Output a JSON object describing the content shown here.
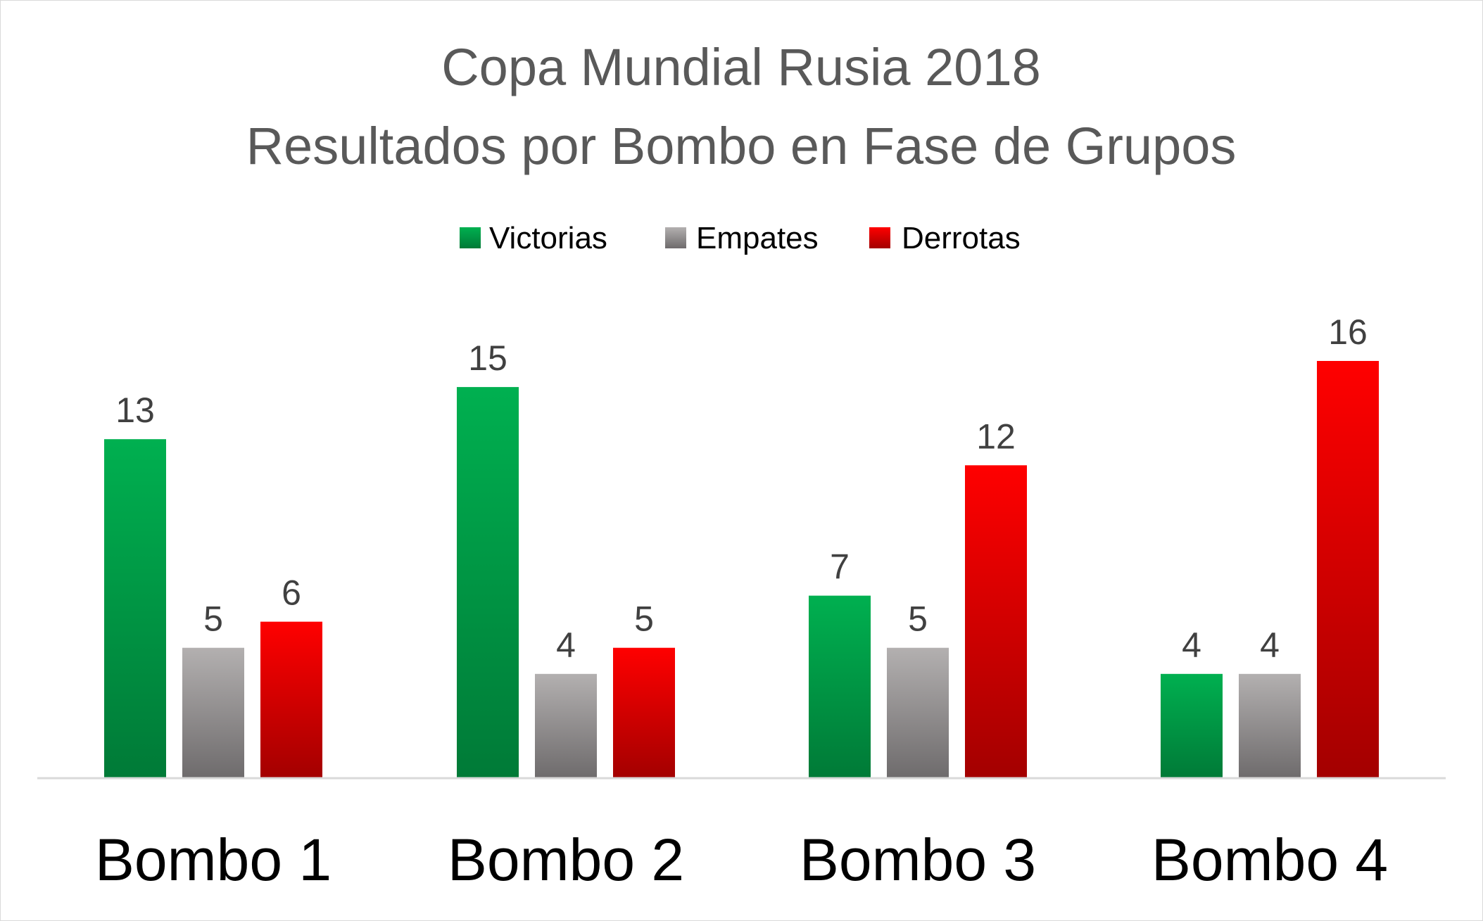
{
  "chart_data": {
    "type": "bar",
    "title": "Copa Mundial Rusia 2018",
    "subtitle": "Resultados por Bombo en Fase de Grupos",
    "categories": [
      "Bombo 1",
      "Bombo 2",
      "Bombo 3",
      "Bombo 4"
    ],
    "series": [
      {
        "name": "Victorias",
        "values": [
          13,
          15,
          7,
          4
        ],
        "color": "#00b050",
        "color_dark": "#007a37"
      },
      {
        "name": "Empates",
        "values": [
          5,
          4,
          5,
          4
        ],
        "color": "#b3b0b0",
        "color_dark": "#6e6b6c"
      },
      {
        "name": "Derrotas",
        "values": [
          6,
          5,
          12,
          16
        ],
        "color": "#ff0000",
        "color_dark": "#a30000"
      }
    ],
    "ylim": [
      0,
      16
    ],
    "legend_position": "top",
    "grid": false,
    "data_labels": true
  }
}
